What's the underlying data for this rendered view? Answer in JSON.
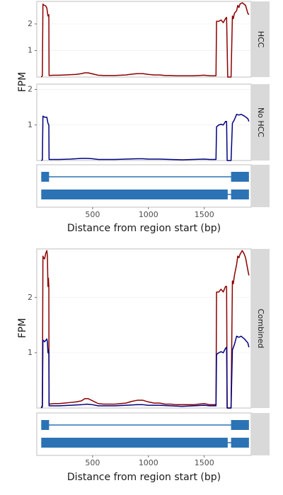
{
  "chart_data": [
    {
      "type": "line",
      "facet_label": "HCC",
      "ylabel": "FPM",
      "xlim": [
        0,
        1920
      ],
      "ylim": [
        0,
        2.85
      ],
      "yticks": [
        1,
        2
      ],
      "series": [
        {
          "color": "#8b0000",
          "points": [
            [
              40,
              0
            ],
            [
              50,
              0.05
            ],
            [
              55,
              2.75
            ],
            [
              60,
              2.72
            ],
            [
              70,
              2.7
            ],
            [
              80,
              2.68
            ],
            [
              90,
              2.6
            ],
            [
              100,
              2.3
            ],
            [
              108,
              2.35
            ],
            [
              110,
              0.06
            ],
            [
              150,
              0.07
            ],
            [
              200,
              0.07
            ],
            [
              250,
              0.08
            ],
            [
              300,
              0.09
            ],
            [
              350,
              0.1
            ],
            [
              400,
              0.13
            ],
            [
              430,
              0.16
            ],
            [
              460,
              0.16
            ],
            [
              500,
              0.12
            ],
            [
              550,
              0.07
            ],
            [
              600,
              0.06
            ],
            [
              650,
              0.06
            ],
            [
              700,
              0.06
            ],
            [
              750,
              0.07
            ],
            [
              800,
              0.08
            ],
            [
              850,
              0.11
            ],
            [
              900,
              0.13
            ],
            [
              950,
              0.13
            ],
            [
              1000,
              0.1
            ],
            [
              1050,
              0.08
            ],
            [
              1100,
              0.08
            ],
            [
              1150,
              0.06
            ],
            [
              1200,
              0.06
            ],
            [
              1250,
              0.05
            ],
            [
              1300,
              0.05
            ],
            [
              1350,
              0.05
            ],
            [
              1400,
              0.05
            ],
            [
              1450,
              0.06
            ],
            [
              1500,
              0.07
            ],
            [
              1550,
              0.05
            ],
            [
              1605,
              0.05
            ],
            [
              1610,
              2.1
            ],
            [
              1630,
              2.1
            ],
            [
              1650,
              2.15
            ],
            [
              1670,
              2.05
            ],
            [
              1690,
              2.2
            ],
            [
              1700,
              2.25
            ],
            [
              1710,
              0.0
            ],
            [
              1740,
              0.0
            ],
            [
              1752,
              2.3
            ],
            [
              1760,
              2.2
            ],
            [
              1770,
              2.4
            ],
            [
              1790,
              2.5
            ],
            [
              1800,
              2.7
            ],
            [
              1810,
              2.62
            ],
            [
              1820,
              2.75
            ],
            [
              1840,
              2.8
            ],
            [
              1855,
              2.75
            ],
            [
              1870,
              2.7
            ],
            [
              1890,
              2.4
            ],
            [
              1900,
              2.35
            ]
          ]
        }
      ]
    },
    {
      "type": "line",
      "facet_label": "No HCC",
      "xlim": [
        0,
        1920
      ],
      "ylim": [
        0,
        2.15
      ],
      "yticks": [
        1,
        2
      ],
      "series": [
        {
          "color": "#000080",
          "points": [
            [
              40,
              0
            ],
            [
              50,
              0.02
            ],
            [
              55,
              1.25
            ],
            [
              70,
              1.22
            ],
            [
              90,
              1.22
            ],
            [
              100,
              1.05
            ],
            [
              108,
              1.0
            ],
            [
              110,
              0.03
            ],
            [
              200,
              0.03
            ],
            [
              300,
              0.04
            ],
            [
              400,
              0.06
            ],
            [
              450,
              0.06
            ],
            [
              500,
              0.05
            ],
            [
              550,
              0.03
            ],
            [
              600,
              0.03
            ],
            [
              700,
              0.03
            ],
            [
              800,
              0.04
            ],
            [
              900,
              0.05
            ],
            [
              950,
              0.05
            ],
            [
              1000,
              0.04
            ],
            [
              1100,
              0.04
            ],
            [
              1200,
              0.03
            ],
            [
              1300,
              0.02
            ],
            [
              1400,
              0.03
            ],
            [
              1500,
              0.04
            ],
            [
              1550,
              0.03
            ],
            [
              1605,
              0.03
            ],
            [
              1610,
              0.95
            ],
            [
              1630,
              1.0
            ],
            [
              1650,
              1.02
            ],
            [
              1670,
              1.0
            ],
            [
              1690,
              1.1
            ],
            [
              1700,
              1.1
            ],
            [
              1705,
              0.0
            ],
            [
              1740,
              0.0
            ],
            [
              1752,
              1.05
            ],
            [
              1770,
              1.15
            ],
            [
              1790,
              1.3
            ],
            [
              1810,
              1.28
            ],
            [
              1830,
              1.3
            ],
            [
              1860,
              1.25
            ],
            [
              1890,
              1.18
            ],
            [
              1900,
              1.1
            ]
          ]
        }
      ]
    },
    {
      "type": "gene-model",
      "facet_label": "",
      "xlabel": "Distance from region start (bp)",
      "xlim": [
        0,
        1920
      ],
      "xticks": [
        500,
        1000,
        1500
      ],
      "color": "#2b73b4",
      "tracks": [
        {
          "line": [
            40,
            1900
          ],
          "blocks": [
            [
              40,
              110
            ],
            [
              1740,
              1900
            ]
          ]
        },
        {
          "line": [
            40,
            1900
          ],
          "blocks": [
            [
              40,
              1710
            ],
            [
              1740,
              1900
            ]
          ]
        }
      ]
    },
    {
      "type": "line",
      "facet_label": "Combined",
      "ylabel": "FPM",
      "xlim": [
        0,
        1920
      ],
      "ylim": [
        0,
        2.88
      ],
      "yticks": [
        1,
        2
      ],
      "series": [
        {
          "color": "#8b0000",
          "points": [
            [
              40,
              0
            ],
            [
              50,
              0.05
            ],
            [
              55,
              2.75
            ],
            [
              60,
              2.72
            ],
            [
              70,
              2.7
            ],
            [
              80,
              2.8
            ],
            [
              90,
              2.85
            ],
            [
              95,
              2.75
            ],
            [
              100,
              2.2
            ],
            [
              104,
              2.35
            ],
            [
              108,
              2.2
            ],
            [
              110,
              0.07
            ],
            [
              150,
              0.08
            ],
            [
              200,
              0.08
            ],
            [
              250,
              0.09
            ],
            [
              300,
              0.1
            ],
            [
              350,
              0.11
            ],
            [
              400,
              0.13
            ],
            [
              430,
              0.17
            ],
            [
              460,
              0.17
            ],
            [
              500,
              0.13
            ],
            [
              550,
              0.08
            ],
            [
              600,
              0.07
            ],
            [
              650,
              0.07
            ],
            [
              700,
              0.07
            ],
            [
              750,
              0.08
            ],
            [
              800,
              0.09
            ],
            [
              850,
              0.12
            ],
            [
              900,
              0.14
            ],
            [
              950,
              0.14
            ],
            [
              1000,
              0.11
            ],
            [
              1050,
              0.09
            ],
            [
              1100,
              0.09
            ],
            [
              1150,
              0.07
            ],
            [
              1200,
              0.07
            ],
            [
              1250,
              0.06
            ],
            [
              1300,
              0.06
            ],
            [
              1350,
              0.06
            ],
            [
              1400,
              0.06
            ],
            [
              1450,
              0.07
            ],
            [
              1500,
              0.08
            ],
            [
              1550,
              0.06
            ],
            [
              1605,
              0.06
            ],
            [
              1610,
              2.1
            ],
            [
              1630,
              2.1
            ],
            [
              1650,
              2.15
            ],
            [
              1670,
              2.1
            ],
            [
              1690,
              2.2
            ],
            [
              1700,
              2.2
            ],
            [
              1705,
              0.0
            ],
            [
              1740,
              0.0
            ],
            [
              1752,
              2.3
            ],
            [
              1760,
              2.25
            ],
            [
              1770,
              2.4
            ],
            [
              1790,
              2.6
            ],
            [
              1800,
              2.75
            ],
            [
              1810,
              2.72
            ],
            [
              1820,
              2.78
            ],
            [
              1840,
              2.85
            ],
            [
              1855,
              2.8
            ],
            [
              1870,
              2.72
            ],
            [
              1890,
              2.5
            ],
            [
              1900,
              2.4
            ]
          ]
        },
        {
          "color": "#000080",
          "points": [
            [
              40,
              0
            ],
            [
              50,
              0.02
            ],
            [
              55,
              1.23
            ],
            [
              70,
              1.2
            ],
            [
              90,
              1.25
            ],
            [
              95,
              1.2
            ],
            [
              100,
              1.0
            ],
            [
              104,
              1.05
            ],
            [
              108,
              0.98
            ],
            [
              110,
              0.04
            ],
            [
              200,
              0.04
            ],
            [
              300,
              0.05
            ],
            [
              400,
              0.06
            ],
            [
              450,
              0.07
            ],
            [
              500,
              0.06
            ],
            [
              550,
              0.04
            ],
            [
              600,
              0.04
            ],
            [
              700,
              0.04
            ],
            [
              800,
              0.05
            ],
            [
              900,
              0.06
            ],
            [
              950,
              0.06
            ],
            [
              1000,
              0.05
            ],
            [
              1100,
              0.05
            ],
            [
              1200,
              0.04
            ],
            [
              1300,
              0.03
            ],
            [
              1400,
              0.04
            ],
            [
              1500,
              0.05
            ],
            [
              1550,
              0.04
            ],
            [
              1605,
              0.04
            ],
            [
              1610,
              0.97
            ],
            [
              1630,
              1.0
            ],
            [
              1650,
              1.02
            ],
            [
              1670,
              1.0
            ],
            [
              1690,
              1.08
            ],
            [
              1700,
              1.1
            ],
            [
              1705,
              0.0
            ],
            [
              1740,
              0.0
            ],
            [
              1752,
              1.05
            ],
            [
              1770,
              1.15
            ],
            [
              1790,
              1.3
            ],
            [
              1810,
              1.28
            ],
            [
              1830,
              1.3
            ],
            [
              1860,
              1.25
            ],
            [
              1890,
              1.18
            ],
            [
              1900,
              1.1
            ]
          ]
        }
      ]
    },
    {
      "type": "gene-model",
      "facet_label": "",
      "xlabel": "Distance from region start (bp)",
      "xlim": [
        0,
        1920
      ],
      "xticks": [
        500,
        1000,
        1500
      ],
      "color": "#2b73b4",
      "tracks": [
        {
          "line": [
            40,
            1900
          ],
          "blocks": [
            [
              40,
              110
            ],
            [
              1740,
              1900
            ]
          ]
        },
        {
          "line": [
            40,
            1900
          ],
          "blocks": [
            [
              40,
              1710
            ],
            [
              1740,
              1900
            ]
          ]
        }
      ]
    }
  ]
}
